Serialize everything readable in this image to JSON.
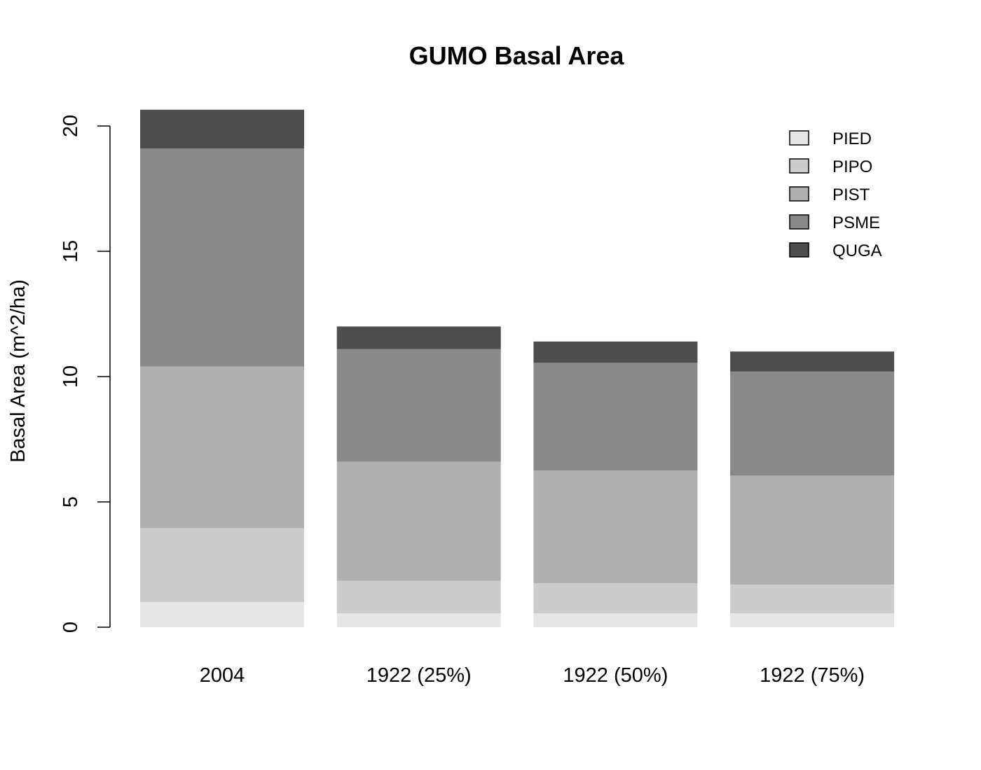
{
  "chart_data": {
    "type": "bar",
    "stacked": true,
    "title": "GUMO Basal Area",
    "xlabel": "",
    "ylabel": "Basal Area (m^2/ha)",
    "ylim": [
      0,
      20.7
    ],
    "yticks": [
      0,
      5,
      10,
      15,
      20
    ],
    "grid": false,
    "legend_position": "top-right",
    "categories": [
      "2004",
      "1922 (25%)",
      "1922 (50%)",
      "1922 (75%)"
    ],
    "series": [
      {
        "name": "PIED",
        "color": "#e6e6e6",
        "values": [
          1.0,
          0.55,
          0.55,
          0.55
        ]
      },
      {
        "name": "PIPO",
        "color": "#cccccc",
        "values": [
          2.95,
          1.3,
          1.2,
          1.15
        ]
      },
      {
        "name": "PIST",
        "color": "#b0b0b0",
        "values": [
          6.45,
          4.75,
          4.5,
          4.35
        ]
      },
      {
        "name": "PSME",
        "color": "#898989",
        "values": [
          8.7,
          4.5,
          4.3,
          4.15
        ]
      },
      {
        "name": "QUGA",
        "color": "#4d4d4d",
        "values": [
          1.55,
          0.9,
          0.85,
          0.8
        ]
      }
    ]
  }
}
